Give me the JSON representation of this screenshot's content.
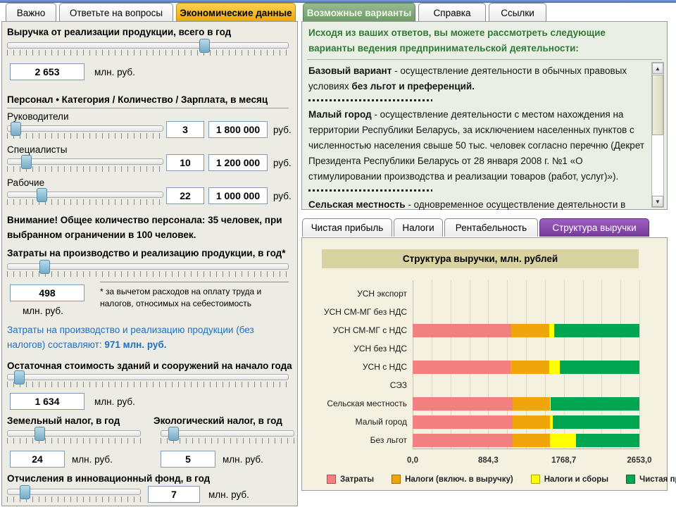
{
  "left_tabs": [
    {
      "label": "Важно",
      "active": false
    },
    {
      "label": "Ответьте на вопросы",
      "active": false
    },
    {
      "label": "Экономические данные",
      "active": true
    }
  ],
  "right_tabs": [
    {
      "label": "Возможные варианты",
      "active": true
    },
    {
      "label": "Справка",
      "active": false
    },
    {
      "label": "Ссылки",
      "active": false
    }
  ],
  "revenue": {
    "label": "Выручка от реализации продукции, всего в год",
    "value": "2 653",
    "unit": "млн. руб.",
    "thumb_pct": 70
  },
  "personnel": {
    "header": "Персонал • Категория / Количество / Зарплата, в месяц",
    "rows": [
      {
        "label": "Руководители",
        "count": "3",
        "salary": "1 800 000",
        "unit": "руб.",
        "thumb_pct": 5
      },
      {
        "label": "Специалисты",
        "count": "10",
        "salary": "1 200 000",
        "unit": "руб.",
        "thumb_pct": 12
      },
      {
        "label": "Рабочие",
        "count": "22",
        "salary": "1 000 000",
        "unit": "руб.",
        "thumb_pct": 22
      }
    ],
    "warning": "Внимание! Общее количество персонала: 35 человек, при выбранном ограничении в 100 человек."
  },
  "costs": {
    "label": "Затраты на производство и реализацию продукции, в год*",
    "value": "498",
    "unit": "млн. руб.",
    "thumb_pct": 13,
    "note": "* за вычетом расходов на оплату труда и налогов, относимых на себестоимость",
    "info_prefix": "Затраты на производство и реализацию продукции (без налогов) составляют: ",
    "info_value": "971 млн. руб."
  },
  "residual": {
    "label": "Остаточная стоимость зданий и сооружений на начало года",
    "value": "1 634",
    "unit": "млн. руб.",
    "thumb_pct": 4
  },
  "land_tax": {
    "label": "Земельный налог, в год",
    "value": "24",
    "unit": "млн. руб.",
    "thumb_pct": 24
  },
  "eco_tax": {
    "label": "Экологический налог, в год",
    "value": "5",
    "unit": "млн. руб.",
    "thumb_pct": 9
  },
  "innovation": {
    "label": "Отчисления в инновационный фонд, в год",
    "value": "7",
    "unit": "млн. руб.",
    "thumb_pct": 13
  },
  "options_panel": {
    "header": "Исходя из ваших ответов, вы можете рассмотреть следующие варианты ведения предпринимательской деятельности:",
    "items": [
      {
        "title": "Базовый вариант",
        "text": " - осуществление деятельности в обычных правовых условиях ",
        "bold_suffix": "без льгот и преференций."
      },
      {
        "title": "Малый город",
        "text": " - осуществление деятельности с местом нахождения на территории Республики Беларусь, за исключением населенных пунктов с численностью населения свыше 50 тыс. человек согласно перечню (Декрет Президента Республики Беларусь от 28 января 2008 г. №1 «О стимулировании производства и реализации товаров (работ, услуг)»).",
        "bold_suffix": ""
      },
      {
        "title": "Сельская местность",
        "text": " - одновременное осуществление деятельности в",
        "bold_suffix": ""
      }
    ],
    "scrollbar": {
      "up_icon": "▲",
      "down_icon": "▼"
    }
  },
  "chart_tabs": [
    {
      "label": "Чистая прибыль",
      "active": false
    },
    {
      "label": "Налоги",
      "active": false
    },
    {
      "label": "Рентабельность",
      "active": false
    },
    {
      "label": "Структура выручки",
      "active": true
    }
  ],
  "chart_data": {
    "type": "bar",
    "orientation": "horizontal",
    "stacked": true,
    "title": "Структура выручки, млн. рублей",
    "categories": [
      "УСН экспорт",
      "УСН СМ-МГ без НДС",
      "УСН СМ-МГ с НДС",
      "УСН без НДС",
      "УСН с НДС",
      "СЭЗ",
      "Сельская местность",
      "Малый город",
      "Без льгот"
    ],
    "series": [
      {
        "name": "Затраты",
        "color": "#f28080",
        "values": [
          0,
          0,
          1150,
          0,
          1145,
          0,
          1168,
          1172,
          1168
        ]
      },
      {
        "name": "Налоги (включ. в выручку)",
        "color": "#f0a60a",
        "values": [
          0,
          0,
          445,
          0,
          450,
          0,
          435,
          435,
          435
        ]
      },
      {
        "name": "Налоги и сборы",
        "color": "#ffff00",
        "values": [
          0,
          0,
          60,
          0,
          130,
          0,
          15,
          30,
          305
        ]
      },
      {
        "name": "Чистая прибыль",
        "color": "#00a651",
        "values": [
          0,
          0,
          998,
          0,
          928,
          0,
          1035,
          1016,
          745
        ]
      }
    ],
    "xlim": [
      0,
      2653
    ],
    "xticks": [
      "0,0",
      "884,3",
      "1768,7",
      "2653,0"
    ],
    "grid_intervals": 12,
    "legend_position": "bottom"
  }
}
